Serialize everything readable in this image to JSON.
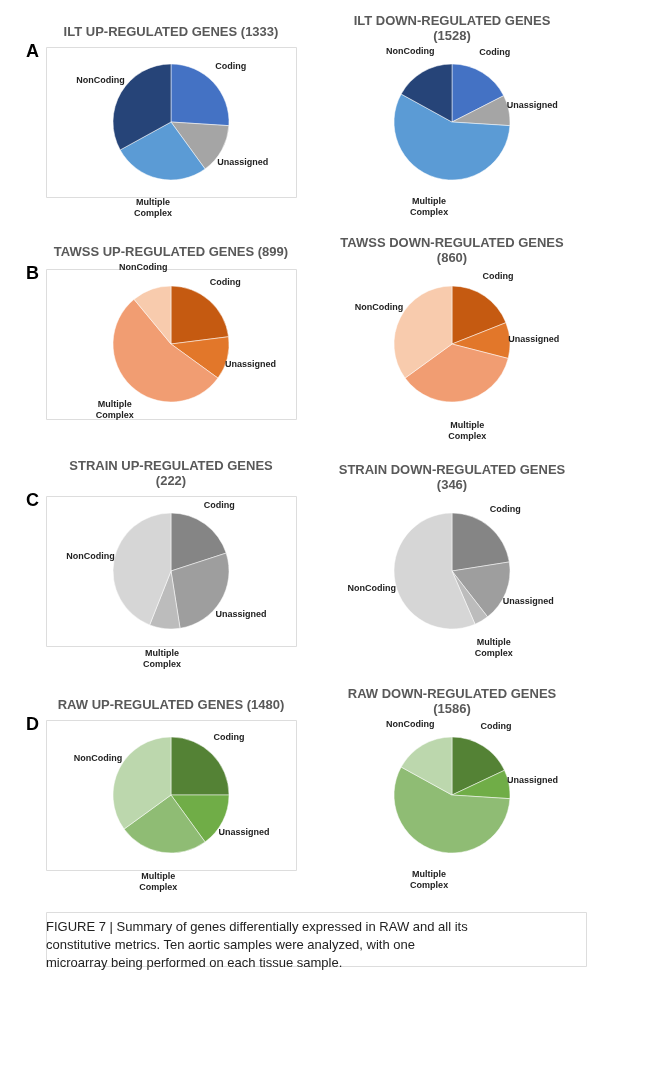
{
  "chart_data": [
    {
      "type": "pie",
      "title": "ILT UP-REGULATED GENES (1333)",
      "annotations": [
        "A"
      ],
      "categories": [
        "Coding",
        "Unassigned",
        "Multiple Complex",
        "NonCoding"
      ],
      "values": [
        26,
        14,
        27,
        33
      ],
      "colors": [
        "#4472c4",
        "#a5a5a5",
        "#5b9bd5",
        "#264478"
      ],
      "legend": false
    },
    {
      "type": "pie",
      "title": "ILT DOWN-REGULATED GENES (1528)",
      "categories": [
        "Coding",
        "Unassigned",
        "Multiple Complex",
        "NonCoding"
      ],
      "values": [
        17.5,
        8.5,
        57,
        17
      ],
      "colors": [
        "#4472c4",
        "#a5a5a5",
        "#5b9bd5",
        "#264478"
      ],
      "legend": false
    },
    {
      "type": "pie",
      "title": "TAWSS UP-REGULATED GENES (899)",
      "annotations": [
        "B"
      ],
      "categories": [
        "Coding",
        "Unassigned",
        "Multiple Complex",
        "NonCoding"
      ],
      "values": [
        23,
        12,
        54,
        11
      ],
      "colors": [
        "#c55a11",
        "#e2772a",
        "#f19d72",
        "#f8cbad"
      ],
      "legend": false
    },
    {
      "type": "pie",
      "title": "TAWSS DOWN-REGULATED GENES (860)",
      "categories": [
        "Coding",
        "Unassigned",
        "Multiple Complex",
        "NonCoding"
      ],
      "values": [
        19,
        10,
        36,
        35
      ],
      "colors": [
        "#c55a11",
        "#e2772a",
        "#f19d72",
        "#f8cbad"
      ],
      "legend": false
    },
    {
      "type": "pie",
      "title": "STRAIN UP-REGULATED GENES (222)",
      "annotations": [
        "C"
      ],
      "categories": [
        "Coding",
        "Unassigned",
        "Multiple Complex",
        "NonCoding"
      ],
      "values": [
        20,
        27.5,
        8.5,
        44
      ],
      "colors": [
        "#858585",
        "#9e9e9e",
        "#bcbcbc",
        "#d6d6d6"
      ],
      "legend": false
    },
    {
      "type": "pie",
      "title": "STRAIN DOWN-REGULATED GENES (346)",
      "categories": [
        "Coding",
        "Unassigned",
        "Multiple Complex",
        "NonCoding"
      ],
      "values": [
        22.5,
        17,
        4,
        56.5
      ],
      "colors": [
        "#858585",
        "#9e9e9e",
        "#bcbcbc",
        "#d6d6d6"
      ],
      "legend": false
    },
    {
      "type": "pie",
      "title": "RAW UP-REGULATED GENES (1480)",
      "annotations": [
        "D"
      ],
      "categories": [
        "Coding",
        "Unassigned",
        "Multiple Complex",
        "NonCoding"
      ],
      "values": [
        25,
        15,
        25,
        35
      ],
      "colors": [
        "#548235",
        "#70ad47",
        "#8fbc74",
        "#bcd7ad"
      ],
      "legend": false
    },
    {
      "type": "pie",
      "title": "RAW DOWN-REGULATED GENES (1586)",
      "categories": [
        "Coding",
        "Unassigned",
        "Multiple Complex",
        "NonCoding"
      ],
      "values": [
        18,
        8,
        57,
        17
      ],
      "colors": [
        "#548235",
        "#70ad47",
        "#8fbc74",
        "#bcd7ad"
      ],
      "legend": false
    },
    {
      "type": "other",
      "annotations": [
        "FIGURE 7 | Summary of genes differentially expressed in RAW and all its constitutive metrics. Ten aortic samples were analyzed, with one microarray being performed on each tissue sample."
      ]
    }
  ]
}
